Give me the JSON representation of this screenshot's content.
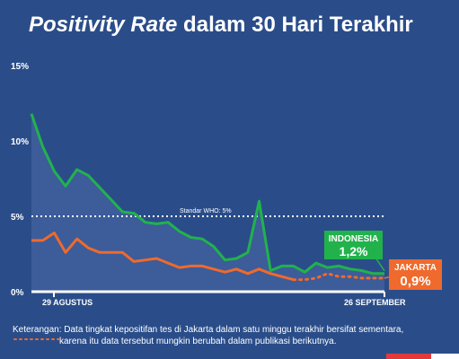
{
  "title": {
    "italic": "Positivity Rate",
    "rest": " dalam 30 Hari Terakhir"
  },
  "note": {
    "line1": "Keterangan: Data tingkat kepositifan tes di Jakarta dalam satu minggu terakhir bersifat sementara,",
    "line2": "karena itu data tersebut mungkin berubah dalam publikasi berikutnya."
  },
  "colors": {
    "background": "#2a4d8a",
    "indonesia": "#22b24c",
    "jakarta": "#ef6a2c",
    "area": "#4a6aa8",
    "who_line": "#ffffff"
  },
  "chart_data": {
    "type": "line",
    "y_unit": "%",
    "ylim": [
      0,
      15
    ],
    "yticks": [
      {
        "value": 0,
        "label": "0%"
      },
      {
        "value": 5,
        "label": "5%"
      },
      {
        "value": 10,
        "label": "10%"
      },
      {
        "value": 15,
        "label": "15%"
      }
    ],
    "x_labels": {
      "start": "29 AGUSTUS",
      "end": "26 SEPTEMBER"
    },
    "reference_line": {
      "label": "Standar WHO: 5%",
      "value": 5,
      "style": "dotted"
    },
    "series": [
      {
        "name": "INDONESIA",
        "end_label": "1,2%",
        "color": "#22b24c",
        "values": [
          11.8,
          9.6,
          8.0,
          7.0,
          8.1,
          7.7,
          6.9,
          6.1,
          5.3,
          5.2,
          4.6,
          4.5,
          4.6,
          4.0,
          3.6,
          3.5,
          3.0,
          2.1,
          2.2,
          2.6,
          6.0,
          1.4,
          1.7,
          1.7,
          1.3,
          1.9,
          1.6,
          1.7,
          1.5,
          1.4,
          1.2,
          1.2
        ]
      },
      {
        "name": "JAKARTA",
        "end_label": "0,9%",
        "color": "#ef6a2c",
        "values": [
          3.4,
          3.4,
          3.9,
          2.6,
          3.5,
          2.9,
          2.6,
          2.6,
          2.6,
          2.0,
          2.1,
          2.2,
          1.9,
          1.6,
          1.7,
          1.7,
          1.5,
          1.3,
          1.5,
          1.2,
          1.5,
          1.2,
          1.0,
          0.8,
          0.8,
          0.9,
          1.2,
          1.0,
          1.0,
          0.9,
          0.9,
          0.9
        ],
        "provisional_from_index": 23
      }
    ]
  }
}
